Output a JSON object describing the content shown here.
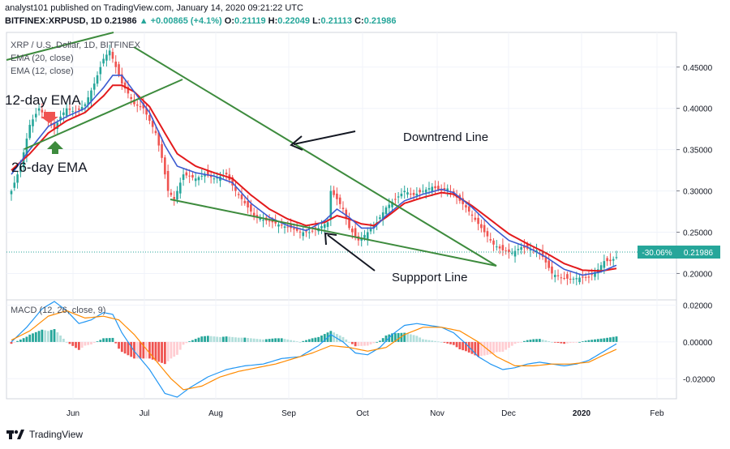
{
  "header": {
    "publish_line": "analyst101 published on TradingView.com, January 14, 2020 09:21:22 UTC",
    "symbol": "BITFINEX:XRPUSD, 1D",
    "last": "0.21986",
    "change": "+0.00865 (+4.1%)",
    "o_label": "O:",
    "o": "0.21119",
    "h_label": "H:",
    "h": "0.22049",
    "l_label": "L:",
    "l": "0.21113",
    "c_label": "C:",
    "c": "0.21986"
  },
  "legend": {
    "title": "XRP / U.S. Dollar, 1D, BITFINEX",
    "ema20": "EMA (20, close)",
    "ema12": "EMA (12, close)",
    "macd": "MACD (12, 26, close, 9)"
  },
  "annotations": {
    "ema12": "12-day EMA",
    "ema26": "26-day EMA",
    "downtrend": "Downtrend Line",
    "support": "Suppport Line"
  },
  "price_tag": {
    "pct": "-30.06%",
    "price": "0.21986"
  },
  "footer": {
    "brand": "TradingView"
  },
  "colors": {
    "up": "#26a69a",
    "down": "#ef5350",
    "ema20": "#e31a1c",
    "ema12": "#3c5bd1",
    "trend": "#3d8b3d",
    "macd_line": "#2196f3",
    "signal_line": "#ff8a00"
  },
  "chart_data": {
    "type": "candlestick",
    "x_ticks": [
      "Jun",
      "Jul",
      "Aug",
      "Sep",
      "Oct",
      "Nov",
      "Dec",
      "2020",
      "Feb"
    ],
    "price_axis": {
      "ylim": [
        0.17,
        0.49
      ],
      "ticks": [
        "0.45000",
        "0.40000",
        "0.35000",
        "0.30000",
        "0.25000",
        "0.20000"
      ]
    },
    "macd_axis": {
      "ylim": [
        -0.03,
        0.022
      ],
      "ticks": [
        "0.02000",
        "0.00000",
        "-0.02000"
      ]
    },
    "close_anchors": [
      [
        0,
        0.3
      ],
      [
        3,
        0.33
      ],
      [
        6,
        0.38
      ],
      [
        9,
        0.4
      ],
      [
        12,
        0.385
      ],
      [
        14,
        0.375
      ],
      [
        16,
        0.39
      ],
      [
        18,
        0.4
      ],
      [
        21,
        0.395
      ],
      [
        24,
        0.405
      ],
      [
        27,
        0.43
      ],
      [
        30,
        0.46
      ],
      [
        32,
        0.47
      ],
      [
        34,
        0.45
      ],
      [
        36,
        0.43
      ],
      [
        38,
        0.418
      ],
      [
        40,
        0.405
      ],
      [
        43,
        0.4
      ],
      [
        47,
        0.37
      ],
      [
        49,
        0.34
      ],
      [
        51,
        0.3
      ],
      [
        53,
        0.29
      ],
      [
        56,
        0.32
      ],
      [
        60,
        0.315
      ],
      [
        63,
        0.32
      ],
      [
        66,
        0.315
      ],
      [
        70,
        0.32
      ],
      [
        73,
        0.3
      ],
      [
        76,
        0.285
      ],
      [
        79,
        0.27
      ],
      [
        82,
        0.265
      ],
      [
        85,
        0.262
      ],
      [
        88,
        0.258
      ],
      [
        91,
        0.255
      ],
      [
        94,
        0.25
      ],
      [
        97,
        0.25
      ],
      [
        100,
        0.255
      ],
      [
        103,
        0.262
      ],
      [
        104,
        0.3
      ],
      [
        106,
        0.29
      ],
      [
        108,
        0.278
      ],
      [
        110,
        0.255
      ],
      [
        113,
        0.24
      ],
      [
        116,
        0.25
      ],
      [
        119,
        0.262
      ],
      [
        122,
        0.28
      ],
      [
        125,
        0.29
      ],
      [
        128,
        0.3
      ],
      [
        131,
        0.295
      ],
      [
        134,
        0.3
      ],
      [
        137,
        0.305
      ],
      [
        140,
        0.3
      ],
      [
        142,
        0.303
      ],
      [
        145,
        0.292
      ],
      [
        148,
        0.28
      ],
      [
        151,
        0.265
      ],
      [
        154,
        0.25
      ],
      [
        157,
        0.235
      ],
      [
        160,
        0.228
      ],
      [
        163,
        0.225
      ],
      [
        166,
        0.232
      ],
      [
        168,
        0.23
      ],
      [
        171,
        0.228
      ],
      [
        173,
        0.22
      ],
      [
        176,
        0.2
      ],
      [
        179,
        0.195
      ],
      [
        182,
        0.193
      ],
      [
        185,
        0.195
      ],
      [
        188,
        0.195
      ],
      [
        191,
        0.205
      ],
      [
        193,
        0.215
      ],
      [
        195,
        0.215
      ],
      [
        197,
        0.21986
      ]
    ],
    "ema20_anchors": [
      [
        0,
        0.325
      ],
      [
        6,
        0.345
      ],
      [
        12,
        0.37
      ],
      [
        18,
        0.385
      ],
      [
        24,
        0.395
      ],
      [
        30,
        0.415
      ],
      [
        33,
        0.428
      ],
      [
        36,
        0.428
      ],
      [
        40,
        0.42
      ],
      [
        45,
        0.402
      ],
      [
        50,
        0.37
      ],
      [
        54,
        0.345
      ],
      [
        60,
        0.33
      ],
      [
        66,
        0.322
      ],
      [
        72,
        0.315
      ],
      [
        78,
        0.295
      ],
      [
        84,
        0.278
      ],
      [
        90,
        0.266
      ],
      [
        96,
        0.258
      ],
      [
        102,
        0.262
      ],
      [
        106,
        0.27
      ],
      [
        110,
        0.266
      ],
      [
        114,
        0.26
      ],
      [
        118,
        0.258
      ],
      [
        122,
        0.268
      ],
      [
        128,
        0.285
      ],
      [
        134,
        0.292
      ],
      [
        140,
        0.298
      ],
      [
        144,
        0.296
      ],
      [
        150,
        0.282
      ],
      [
        156,
        0.265
      ],
      [
        162,
        0.248
      ],
      [
        168,
        0.236
      ],
      [
        174,
        0.225
      ],
      [
        180,
        0.212
      ],
      [
        186,
        0.204
      ],
      [
        192,
        0.203
      ],
      [
        197,
        0.206
      ]
    ],
    "ema12_anchors": [
      [
        0,
        0.32
      ],
      [
        6,
        0.35
      ],
      [
        12,
        0.378
      ],
      [
        18,
        0.39
      ],
      [
        24,
        0.4
      ],
      [
        30,
        0.425
      ],
      [
        33,
        0.44
      ],
      [
        36,
        0.44
      ],
      [
        40,
        0.42
      ],
      [
        45,
        0.395
      ],
      [
        50,
        0.355
      ],
      [
        54,
        0.33
      ],
      [
        60,
        0.322
      ],
      [
        66,
        0.318
      ],
      [
        72,
        0.31
      ],
      [
        78,
        0.285
      ],
      [
        84,
        0.268
      ],
      [
        90,
        0.258
      ],
      [
        96,
        0.252
      ],
      [
        102,
        0.264
      ],
      [
        106,
        0.278
      ],
      [
        110,
        0.268
      ],
      [
        114,
        0.255
      ],
      [
        118,
        0.255
      ],
      [
        122,
        0.27
      ],
      [
        128,
        0.288
      ],
      [
        134,
        0.296
      ],
      [
        140,
        0.302
      ],
      [
        144,
        0.298
      ],
      [
        150,
        0.28
      ],
      [
        156,
        0.258
      ],
      [
        162,
        0.24
      ],
      [
        168,
        0.232
      ],
      [
        174,
        0.22
      ],
      [
        180,
        0.205
      ],
      [
        186,
        0.198
      ],
      [
        192,
        0.202
      ],
      [
        197,
        0.21
      ]
    ],
    "macd_anchors": [
      [
        0,
        0.0
      ],
      [
        5,
        0.008
      ],
      [
        10,
        0.018
      ],
      [
        14,
        0.022
      ],
      [
        18,
        0.017
      ],
      [
        22,
        0.01
      ],
      [
        26,
        0.012
      ],
      [
        30,
        0.016
      ],
      [
        33,
        0.015
      ],
      [
        36,
        0.005
      ],
      [
        40,
        -0.005
      ],
      [
        45,
        -0.015
      ],
      [
        50,
        -0.028
      ],
      [
        54,
        -0.03
      ],
      [
        58,
        -0.025
      ],
      [
        64,
        -0.019
      ],
      [
        70,
        -0.015
      ],
      [
        76,
        -0.013
      ],
      [
        82,
        -0.012
      ],
      [
        88,
        -0.009
      ],
      [
        94,
        -0.008
      ],
      [
        100,
        -0.002
      ],
      [
        104,
        0.004
      ],
      [
        108,
        0.0
      ],
      [
        112,
        -0.006
      ],
      [
        116,
        -0.007
      ],
      [
        120,
        -0.003
      ],
      [
        124,
        0.004
      ],
      [
        128,
        0.009
      ],
      [
        132,
        0.01
      ],
      [
        136,
        0.009
      ],
      [
        140,
        0.008
      ],
      [
        144,
        0.005
      ],
      [
        148,
        -0.001
      ],
      [
        152,
        -0.008
      ],
      [
        156,
        -0.012
      ],
      [
        160,
        -0.015
      ],
      [
        164,
        -0.014
      ],
      [
        168,
        -0.012
      ],
      [
        172,
        -0.011
      ],
      [
        176,
        -0.012
      ],
      [
        180,
        -0.013
      ],
      [
        184,
        -0.012
      ],
      [
        188,
        -0.01
      ],
      [
        192,
        -0.006
      ],
      [
        197,
        -0.001
      ]
    ],
    "signal_anchors": [
      [
        0,
        0.001
      ],
      [
        6,
        0.006
      ],
      [
        12,
        0.014
      ],
      [
        18,
        0.017
      ],
      [
        24,
        0.013
      ],
      [
        30,
        0.014
      ],
      [
        35,
        0.012
      ],
      [
        40,
        0.004
      ],
      [
        46,
        -0.008
      ],
      [
        52,
        -0.02
      ],
      [
        56,
        -0.026
      ],
      [
        62,
        -0.024
      ],
      [
        68,
        -0.019
      ],
      [
        74,
        -0.016
      ],
      [
        80,
        -0.014
      ],
      [
        86,
        -0.012
      ],
      [
        92,
        -0.009
      ],
      [
        98,
        -0.006
      ],
      [
        104,
        -0.002
      ],
      [
        110,
        -0.003
      ],
      [
        116,
        -0.005
      ],
      [
        122,
        -0.003
      ],
      [
        128,
        0.004
      ],
      [
        134,
        0.008
      ],
      [
        140,
        0.008
      ],
      [
        146,
        0.006
      ],
      [
        152,
        0.0
      ],
      [
        158,
        -0.008
      ],
      [
        164,
        -0.013
      ],
      [
        170,
        -0.013
      ],
      [
        176,
        -0.012
      ],
      [
        182,
        -0.012
      ],
      [
        188,
        -0.011
      ],
      [
        193,
        -0.007
      ],
      [
        197,
        -0.004
      ]
    ]
  }
}
